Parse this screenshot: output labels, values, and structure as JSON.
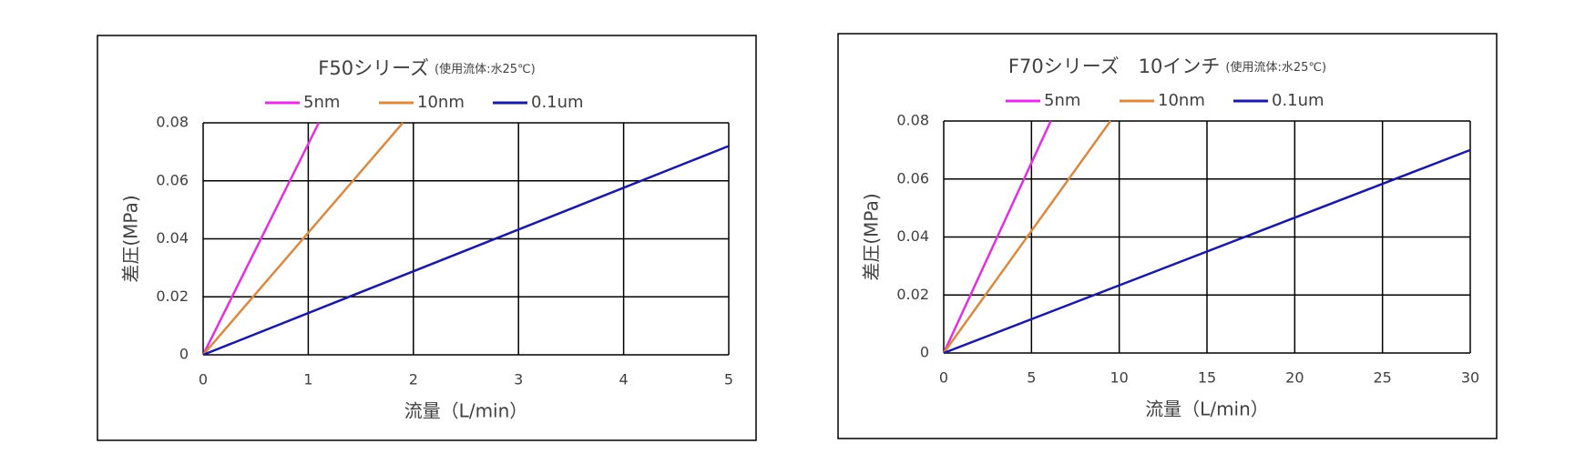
{
  "chart_data": [
    {
      "type": "line",
      "title": "F50シリーズ",
      "subtitle": "(使用流体:水25℃)",
      "x_label": "流量（L/min）",
      "y_label": "差圧(MPa)",
      "xlim": [
        0,
        5
      ],
      "xticks": [
        0,
        1,
        2,
        3,
        4,
        5
      ],
      "ylim": [
        0,
        0.08
      ],
      "yticks": [
        0,
        0.02,
        0.04,
        0.06,
        0.08
      ],
      "grid": true,
      "legend": "top",
      "series": [
        {
          "name": "5nm",
          "color": "#e030e0",
          "x": [
            0,
            1.1
          ],
          "values": [
            0,
            0.08
          ]
        },
        {
          "name": "10nm",
          "color": "#d98a40",
          "x": [
            0,
            1.9
          ],
          "values": [
            0,
            0.08
          ]
        },
        {
          "name": "0.1um",
          "color": "#1a1a9c",
          "x": [
            0,
            5
          ],
          "values": [
            0,
            0.072
          ]
        }
      ]
    },
    {
      "type": "line",
      "title": "F70シリーズ　10インチ",
      "subtitle": "(使用流体:水25℃)",
      "x_label": "流量（L/min）",
      "y_label": "差圧(MPa)",
      "xlim": [
        0,
        30
      ],
      "xticks": [
        0,
        5,
        10,
        15,
        20,
        25,
        30
      ],
      "ylim": [
        0,
        0.08
      ],
      "yticks": [
        0,
        0.02,
        0.04,
        0.06,
        0.08
      ],
      "grid": true,
      "legend": "top",
      "series": [
        {
          "name": "5nm",
          "color": "#e030e0",
          "x": [
            0,
            6.1
          ],
          "values": [
            0,
            0.08
          ]
        },
        {
          "name": "10nm",
          "color": "#d98a40",
          "x": [
            0,
            9.5
          ],
          "values": [
            0,
            0.08
          ]
        },
        {
          "name": "0.1um",
          "color": "#1a1a9c",
          "x": [
            0,
            30
          ],
          "values": [
            0,
            0.07
          ]
        }
      ]
    }
  ]
}
